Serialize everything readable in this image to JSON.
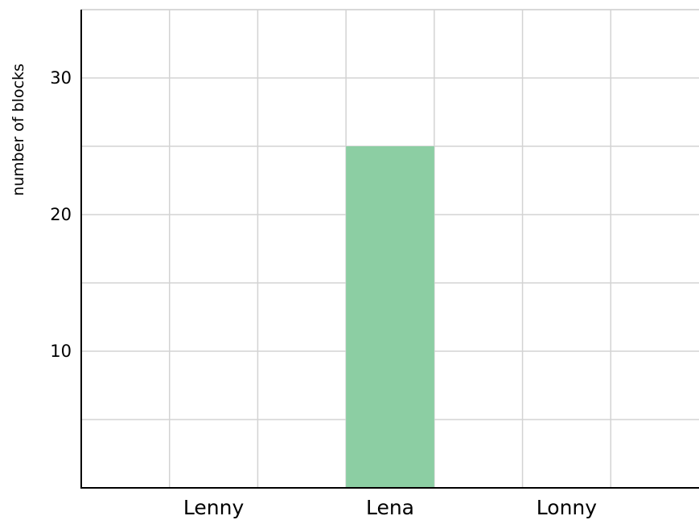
{
  "chart_data": {
    "type": "bar",
    "title": "",
    "xlabel": "",
    "ylabel": "number of blocks",
    "categories": [
      "Lenny",
      "Lena",
      "Lonny"
    ],
    "values": [
      null,
      25,
      null
    ],
    "ylim": [
      0,
      35
    ],
    "yticks": [
      10,
      20,
      30
    ],
    "grid": true,
    "bar_color": "#8ccea3"
  }
}
